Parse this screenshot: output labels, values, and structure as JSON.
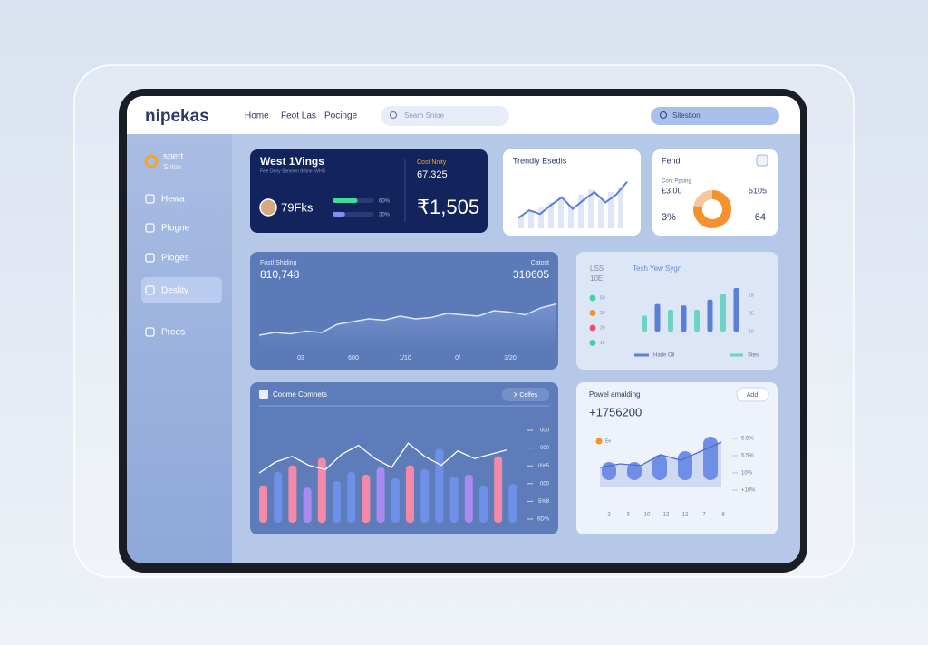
{
  "header": {
    "logo": "nipekas",
    "nav": [
      "Home",
      "Feot Las",
      "Pocinge"
    ],
    "search": "Searh Snioe",
    "search_right": "Sitestion"
  },
  "sidebar": {
    "brand": [
      "spert",
      "Shlon"
    ],
    "items": [
      "Hewa",
      "Plogne",
      "Pioges",
      "Deslity",
      "Prees"
    ],
    "active": 3
  },
  "cards": {
    "summary": {
      "title": "West 1Vings",
      "subtitle": "Fe'e Deny Seneren tHhne aVHS",
      "user_value": "79Fks",
      "progress": {
        "values": [
          60,
          30
        ],
        "value_labels": [
          "60%",
          "30%"
        ],
        "colors": [
          "#3ddc97",
          "#7f8ff0"
        ]
      },
      "kpi_label": "Cost Nnity",
      "kpi_small": "67.325",
      "kpi_big": "₹1,505"
    },
    "trend": {
      "title": "Trendly Esedis",
      "ylim": [
        0,
        40
      ],
      "bars": [
        10,
        14,
        16,
        20,
        24,
        18,
        26,
        30,
        22,
        28,
        32
      ],
      "line": [
        8,
        14,
        11,
        18,
        24,
        15,
        22,
        28,
        20,
        26,
        36
      ],
      "color": "#5b7fd6"
    },
    "fend": {
      "title": "Fend",
      "left_label": "Cont Ppsing",
      "left_value": "£3.00",
      "right_value": "5105",
      "bottom_left": "3%",
      "bottom_right": "64",
      "donut": {
        "values": [
          78,
          22
        ],
        "colors": [
          "#f5922e",
          "#f6c79a"
        ]
      }
    },
    "area": {
      "title": "Fostl Shiding",
      "value": "810,748",
      "right_title": "Catost",
      "right_value": "310605",
      "ylim": [
        0,
        100
      ],
      "values": [
        20,
        24,
        22,
        26,
        24,
        36,
        40,
        44,
        42,
        48,
        44,
        46,
        52,
        50,
        48,
        56,
        54,
        50,
        60,
        66
      ],
      "x_labels": [
        "03",
        "600",
        "1/10",
        "0/",
        "3/20"
      ]
    },
    "bars": {
      "labels": [
        "LSS",
        "10E"
      ],
      "title": "Tesh Yew Sygn",
      "legend": {
        "labels": [
          "50",
          "20",
          "20",
          "10"
        ],
        "colors": [
          "#3ddc97",
          "#f5922e",
          "#f0506e",
          "#3dcfb0"
        ]
      },
      "ylim": [
        0,
        70
      ],
      "values": [
        22,
        38,
        30,
        36,
        30,
        44,
        52,
        60
      ],
      "colors": [
        "#6ed3c6",
        "#5b7fd6",
        "#6ed3c6",
        "#5b7fd6",
        "#6ed3c6",
        "#5b7fd6",
        "#6ed3c6",
        "#5b7fd6"
      ],
      "y_labels": [
        "15",
        "05",
        "10"
      ],
      "footer": [
        "Hade Oil",
        "Stes"
      ]
    },
    "comments": {
      "title": "Coome Comnets",
      "button": "X Celfes",
      "ylim": [
        0,
        100
      ],
      "values": [
        40,
        55,
        62,
        38,
        70,
        45,
        55,
        52,
        60,
        48,
        62,
        58,
        80,
        50,
        52,
        40,
        72,
        42
      ],
      "colors": [
        "#f48aa8",
        "#6f90e8",
        "#f48aa8",
        "#a78bf0",
        "#f48aa8",
        "#6f90e8",
        "#6f90e8",
        "#f48aa8",
        "#a78bf0",
        "#6f90e8",
        "#f48aa8",
        "#6f90e8",
        "#6f90e8",
        "#6f90e8",
        "#a78bf0",
        "#6f90e8",
        "#f48aa8",
        "#6f90e8"
      ],
      "line": [
        45,
        55,
        60,
        52,
        48,
        62,
        70,
        58,
        50,
        72,
        60,
        52,
        65,
        58,
        62,
        66
      ],
      "y_labels": [
        "000",
        "000",
        "0%5",
        "000",
        "5%8",
        "6D%"
      ]
    },
    "modeling": {
      "title": "Powel amalding",
      "button": "Add",
      "value": "+1756200",
      "legend": "Ee",
      "ylim": [
        0,
        60
      ],
      "values": [
        20,
        20,
        28,
        32,
        48
      ],
      "line": [
        22,
        26,
        24,
        36,
        30,
        40,
        50
      ],
      "y_labels": [
        "5.5%",
        "5.5%",
        "10%",
        "+10%"
      ],
      "x_labels": [
        "2",
        "3",
        "10",
        "12",
        "12",
        "7",
        "8"
      ]
    }
  }
}
